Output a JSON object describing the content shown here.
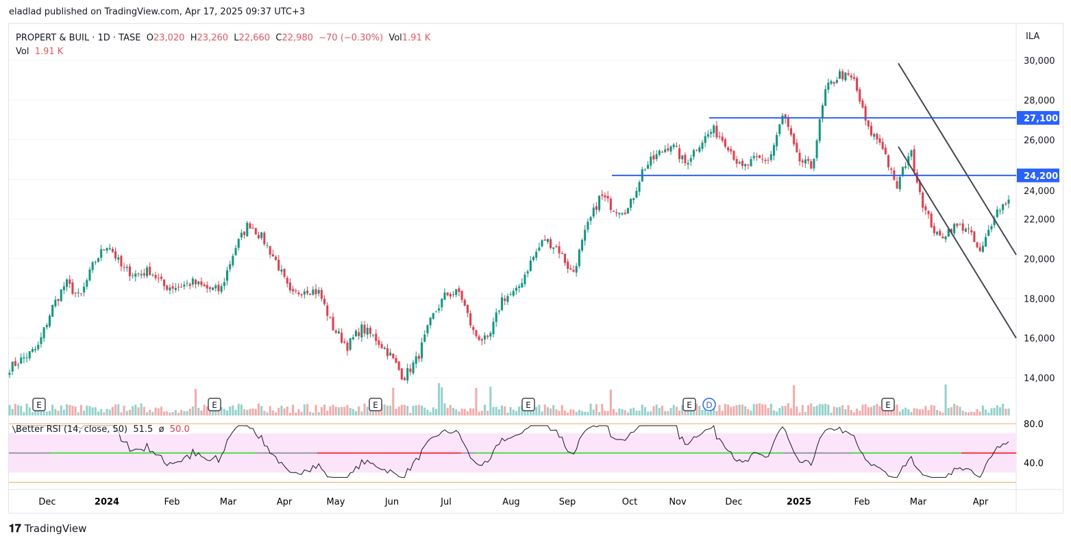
{
  "header": {
    "published": "eladlad published on TradingView.com, Apr 17, 2025 09:37 UTC+3"
  },
  "legend": {
    "symbol": "PROPERT & BUIL · 1D · TASE",
    "o_label": "O",
    "open": "23,020",
    "h_label": "H",
    "high": "23,260",
    "l_label": "L",
    "low": "22,660",
    "c_label": "C",
    "close": "22,980",
    "change": "−70 (−0.30%)",
    "vol_label": "Vol",
    "vol": "1.91 K",
    "vol2_label": "Vol",
    "vol2": "1.91 K"
  },
  "rsi_legend": {
    "name": "Better RSI (14, close, 50)",
    "value": "51.5",
    "sym": "ø",
    "value2": "50.0"
  },
  "currency": "ILA",
  "logo": "TradingView",
  "colors": {
    "up": "#089981",
    "down": "#f23645",
    "level": "#2962ff",
    "rsi_band": "#fce4fb"
  },
  "chart_data": {
    "type": "candlestick",
    "title": "PROPERT & BUIL · 1D · TASE",
    "ylim": [
      13000,
      30500
    ],
    "y_ticks": [
      "30,000",
      "28,000",
      "26,000",
      "24,000",
      "22,000",
      "20,000",
      "18,000",
      "16,000",
      "14,000"
    ],
    "y_tick_values": [
      30000,
      28000,
      26000,
      24000,
      22000,
      20000,
      18000,
      16000,
      14000
    ],
    "x_ticks": [
      "Dec",
      "2024",
      "Feb",
      "Mar",
      "Apr",
      "May",
      "Jun",
      "Jul",
      "Aug",
      "Sep",
      "Oct",
      "Nov",
      "Dec",
      "2025",
      "Feb",
      "Mar",
      "Apr"
    ],
    "bold_ticks": [
      "2024",
      "2025"
    ],
    "close_path_anchors": [
      14500,
      15000,
      15500,
      17500,
      18800,
      18000,
      19800,
      20800,
      19500,
      19200,
      19400,
      18600,
      18600,
      18800,
      18500,
      18400,
      20500,
      21800,
      21000,
      19800,
      18100,
      18500,
      18300,
      16500,
      15600,
      16500,
      16000,
      15200,
      14000,
      15000,
      17000,
      18200,
      18300,
      16200,
      15800,
      18000,
      18300,
      19800,
      21000,
      20500,
      19200,
      21500,
      23200,
      22500,
      22500,
      24500,
      25200,
      25800,
      24800,
      25800,
      26500,
      25800,
      24500,
      25000,
      25000,
      27300,
      25000,
      24600,
      28500,
      29300,
      29000,
      26500,
      25800,
      23500,
      25500,
      22500,
      21000,
      21600,
      21600,
      20200,
      22300,
      23000
    ],
    "levels": [
      {
        "label": "27,100",
        "value": 27100
      },
      {
        "label": "24,200",
        "value": 24200
      }
    ],
    "channel": {
      "upper": [
        29850,
        20200
      ],
      "lower": [
        25650,
        16000
      ]
    },
    "events": [
      "E",
      "E",
      "E",
      "E",
      "E",
      "D",
      "E"
    ],
    "rsi": {
      "upper": "80.0",
      "lower": "40.0",
      "mid": 50
    }
  }
}
